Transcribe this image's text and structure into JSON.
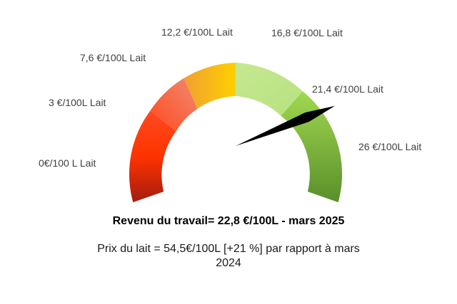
{
  "chart_data": {
    "type": "gauge",
    "min": 0,
    "max": 32,
    "value": 22.8,
    "tick_values": [
      0,
      3,
      7.6,
      12.2,
      16.8,
      21.4,
      26
    ],
    "tick_labels": [
      "0€/100 L Lait",
      "3 €/100L Lait",
      "7,6 €/100L Lait",
      "12,2 €/100L Lait",
      "16,8 €/100L Lait",
      "21,4 €/100L Lait",
      "26 €/100L Lait"
    ],
    "band_colors": [
      "#a31c10",
      "#ff3300",
      "#f08070",
      "#f5a623",
      "#ffd000",
      "#c5e88f",
      "#9fd84a",
      "#5a8f2a"
    ],
    "needle_color": "#000000",
    "headline": "Revenu du travail= 22,8 €/100L - mars 2025",
    "subline": "Prix du lait = 54,5€/100L [+21 %] par rapport à mars 2024"
  }
}
